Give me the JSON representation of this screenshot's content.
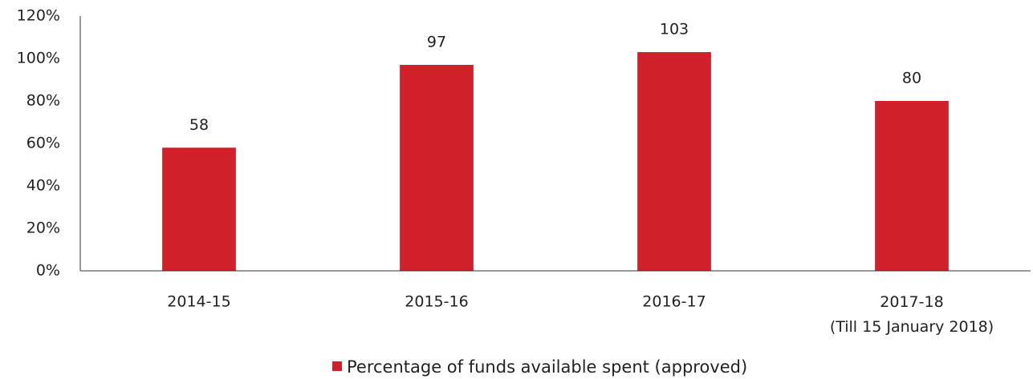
{
  "chart_data": {
    "type": "bar",
    "categories": [
      "2014-15",
      "2015-16",
      "2016-17",
      "2017-18\n(Till 15 January 2018)"
    ],
    "series": [
      {
        "name": "Percentage of funds available spent (approved)",
        "color": "#d0202a",
        "values": [
          58,
          97,
          103,
          80
        ]
      }
    ],
    "ylim": [
      0,
      120
    ],
    "yticks": [
      {
        "value": 0,
        "label": "0%"
      },
      {
        "value": 20,
        "label": "20%"
      },
      {
        "value": 40,
        "label": "40%"
      },
      {
        "value": 60,
        "label": "60%"
      },
      {
        "value": 80,
        "label": "80%"
      },
      {
        "value": 100,
        "label": "100%"
      },
      {
        "value": 120,
        "label": "120%"
      }
    ],
    "grid": false,
    "legend": "bottom"
  }
}
